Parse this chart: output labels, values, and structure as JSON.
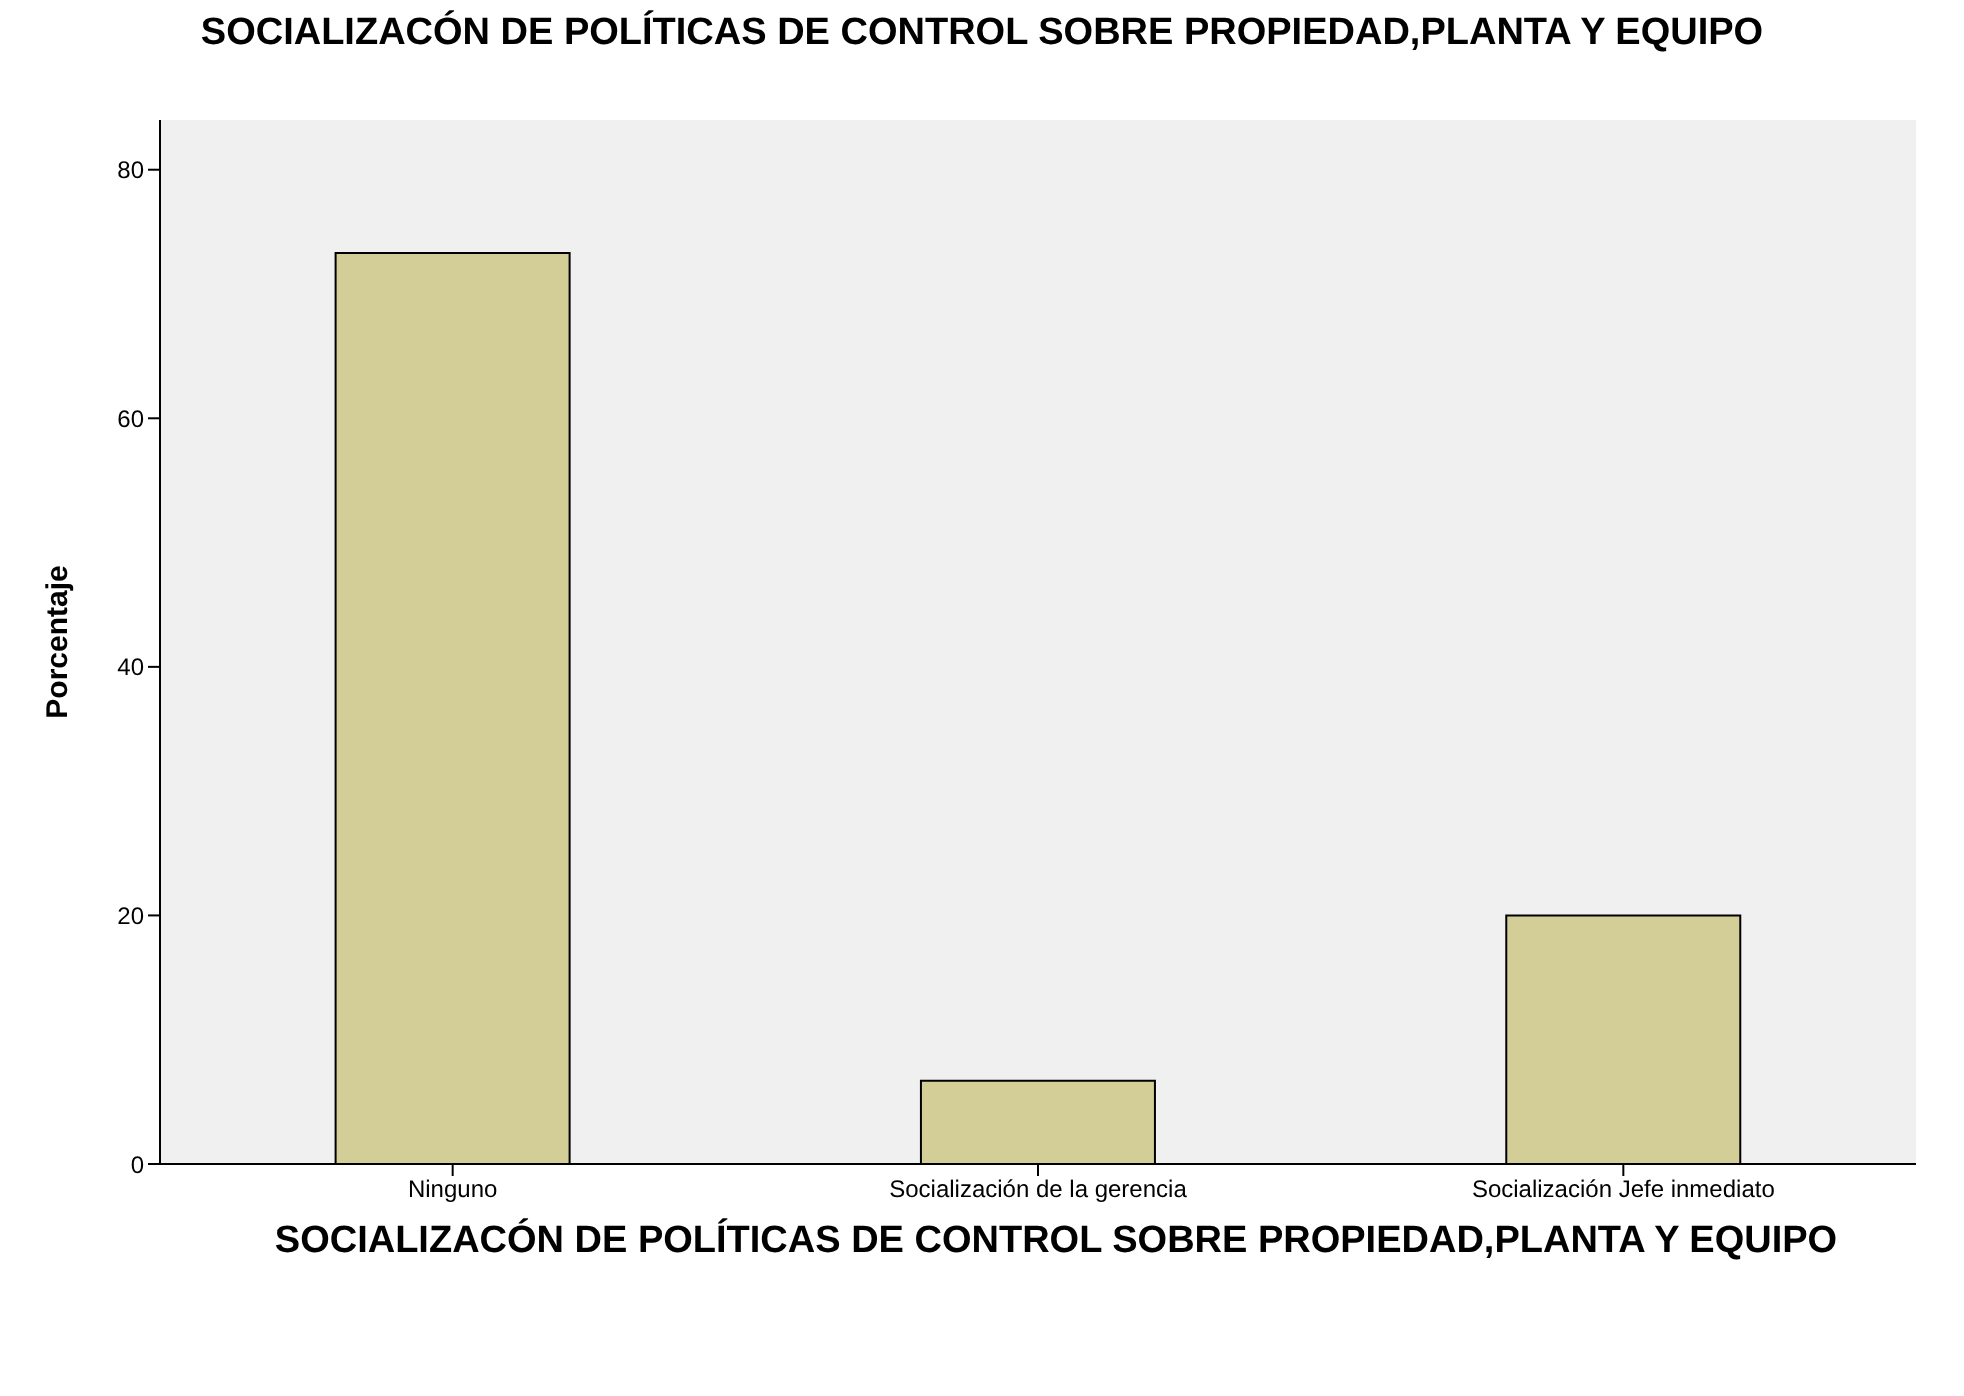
{
  "chart_data": {
    "type": "bar",
    "title": "SOCIALIZACÓN DE POLÍTICAS DE CONTROL SOBRE PROPIEDAD,PLANTA Y EQUIPO",
    "xlabel": "SOCIALIZACÓN DE POLÍTICAS DE CONTROL SOBRE PROPIEDAD,PLANTA Y EQUIPO",
    "ylabel": "Porcentaje",
    "categories": [
      "Ninguno",
      "Socialización de la gerencia",
      "Socialización Jefe inmediato"
    ],
    "values": [
      73.3,
      6.7,
      20
    ],
    "color": "#d3ce97",
    "ylim": [
      0,
      84
    ],
    "yticks": [
      0,
      20,
      40,
      60,
      80
    ],
    "grid": false
  }
}
